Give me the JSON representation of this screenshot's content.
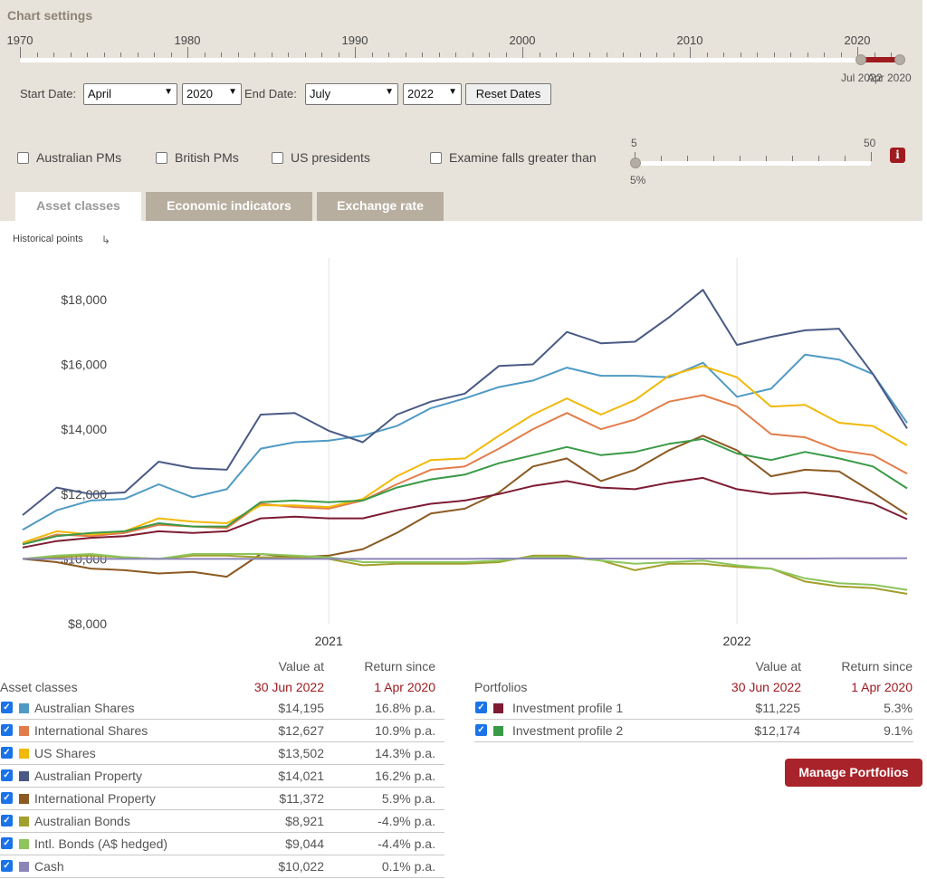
{
  "settings": {
    "title": "Chart settings",
    "timeline_years": [
      "1970",
      "1980",
      "1990",
      "2000",
      "2010",
      "2020"
    ],
    "range_start_label": "Apr 2020",
    "range_end_label": "Jul 2022",
    "start_date_label": "Start Date:",
    "start_month": "April",
    "start_year": "2020",
    "end_date_label": "End Date:",
    "end_month": "July",
    "end_year": "2022",
    "reset_label": "Reset Dates",
    "overlays": [
      "Australian PMs",
      "British PMs",
      "US presidents",
      "Examine falls greater than"
    ],
    "falls_min": "5",
    "falls_max": "50",
    "falls_value": "5%",
    "info_icon": "i",
    "accent": "#9e1b20"
  },
  "tabs": [
    "Asset classes",
    "Economic indicators",
    "Exchange rate"
  ],
  "historical_points_label": "Historical points",
  "chart_data": {
    "type": "line",
    "x": [
      "2020-04",
      "2020-05",
      "2020-06",
      "2020-07",
      "2020-08",
      "2020-09",
      "2020-10",
      "2020-11",
      "2020-12",
      "2021-01",
      "2021-02",
      "2021-03",
      "2021-04",
      "2021-05",
      "2021-06",
      "2021-07",
      "2021-08",
      "2021-09",
      "2021-10",
      "2021-11",
      "2021-12",
      "2022-01",
      "2022-02",
      "2022-03",
      "2022-04",
      "2022-05",
      "2022-06"
    ],
    "x_ticks": [
      "2021",
      "2022"
    ],
    "y_ticks": [
      "$8,000",
      "$10,000",
      "$12,000",
      "$14,000",
      "$16,000",
      "$18,000"
    ],
    "ylim": [
      8000,
      19000
    ],
    "grid": "vertical at year starts",
    "series": [
      {
        "name": "Australian Shares",
        "color": "#4f9ac4",
        "values": [
          10900,
          11500,
          11800,
          11850,
          12300,
          11900,
          12150,
          13400,
          13600,
          13650,
          13800,
          14100,
          14650,
          14950,
          15300,
          15500,
          15900,
          15650,
          15650,
          15600,
          16050,
          15000,
          15250,
          16300,
          16150,
          15700,
          14195
        ]
      },
      {
        "name": "International Shares",
        "color": "#e27d4b",
        "values": [
          10450,
          10750,
          10700,
          10800,
          11050,
          11000,
          10950,
          11700,
          11600,
          11550,
          11800,
          12300,
          12750,
          12850,
          13400,
          14000,
          14500,
          14000,
          14300,
          14850,
          15050,
          14700,
          13850,
          13750,
          13350,
          13200,
          12627
        ]
      },
      {
        "name": "US Shares",
        "color": "#f1b90a",
        "values": [
          10500,
          10850,
          10750,
          10850,
          11250,
          11150,
          11100,
          11650,
          11650,
          11600,
          11850,
          12550,
          13050,
          13100,
          13800,
          14450,
          14950,
          14450,
          14900,
          15650,
          15950,
          15600,
          14700,
          14750,
          14200,
          14100,
          13502
        ]
      },
      {
        "name": "Australian Property",
        "color": "#4a5a85",
        "values": [
          11350,
          12200,
          12000,
          12050,
          13000,
          12800,
          12750,
          14450,
          14500,
          13950,
          13600,
          14450,
          14850,
          15100,
          15950,
          16000,
          17000,
          16650,
          16700,
          17450,
          18300,
          16600,
          16850,
          17050,
          17100,
          15700,
          14021
        ]
      },
      {
        "name": "International Property",
        "color": "#8b5a22",
        "values": [
          10000,
          9900,
          9700,
          9650,
          9550,
          9600,
          9450,
          10150,
          10050,
          10100,
          10300,
          10800,
          11400,
          11550,
          12050,
          12850,
          13100,
          12400,
          12750,
          13350,
          13800,
          13350,
          12550,
          12750,
          12700,
          12050,
          11372
        ]
      },
      {
        "name": "Australian Bonds",
        "color": "#a2a02c",
        "values": [
          10000,
          10050,
          10100,
          10050,
          10000,
          10100,
          10100,
          10050,
          10050,
          10000,
          9800,
          9850,
          9850,
          9850,
          9900,
          10100,
          10100,
          9950,
          9650,
          9850,
          9850,
          9750,
          9700,
          9300,
          9150,
          9100,
          8921
        ]
      },
      {
        "name": "Intl. Bonds (A$ hedged)",
        "color": "#8cc55c",
        "values": [
          10000,
          10100,
          10150,
          10050,
          10000,
          10150,
          10150,
          10150,
          10100,
          10050,
          9900,
          9900,
          9900,
          9900,
          9950,
          10050,
          10050,
          9950,
          9850,
          9900,
          9950,
          9800,
          9700,
          9400,
          9250,
          9200,
          9044
        ]
      },
      {
        "name": "Cash",
        "color": "#8b85b8",
        "values": [
          10000,
          10000,
          10000,
          10000,
          10000,
          10000,
          10000,
          10000,
          10000,
          10000,
          10000,
          10000,
          10000,
          10000,
          10010,
          10010,
          10010,
          10010,
          10010,
          10010,
          10010,
          10010,
          10010,
          10012,
          10015,
          10018,
          10022
        ]
      },
      {
        "name": "Investment profile 1",
        "color": "#7d1b32",
        "values": [
          10350,
          10550,
          10650,
          10700,
          10850,
          10800,
          10850,
          11250,
          11300,
          11250,
          11250,
          11500,
          11700,
          11800,
          12000,
          12250,
          12400,
          12200,
          12150,
          12350,
          12500,
          12150,
          12000,
          12050,
          11900,
          11700,
          11225
        ]
      },
      {
        "name": "Investment profile 2",
        "color": "#3a9a48",
        "values": [
          10450,
          10700,
          10800,
          10850,
          11100,
          11000,
          11000,
          11750,
          11800,
          11750,
          11800,
          12200,
          12450,
          12600,
          12950,
          13200,
          13450,
          13200,
          13300,
          13550,
          13700,
          13250,
          13050,
          13300,
          13100,
          12850,
          12174
        ]
      }
    ]
  },
  "asset_table": {
    "title": "Asset classes",
    "col1_header": "Value at",
    "col1_sub": "30 Jun 2022",
    "col2_header": "Return since",
    "col2_sub": "1 Apr 2020",
    "rows": [
      {
        "name": "Australian Shares",
        "value": "$14,195",
        "ret": "16.8% p.a.",
        "color": "#4f9ac4"
      },
      {
        "name": "International Shares",
        "value": "$12,627",
        "ret": "10.9% p.a.",
        "color": "#e27d4b"
      },
      {
        "name": "US Shares",
        "value": "$13,502",
        "ret": "14.3% p.a.",
        "color": "#f1b90a"
      },
      {
        "name": "Australian Property",
        "value": "$14,021",
        "ret": "16.2% p.a.",
        "color": "#4a5a85"
      },
      {
        "name": "International Property",
        "value": "$11,372",
        "ret": "5.9% p.a.",
        "color": "#8b5a22"
      },
      {
        "name": "Australian Bonds",
        "value": "$8,921",
        "ret": "-4.9% p.a.",
        "color": "#a2a02c"
      },
      {
        "name": "Intl. Bonds (A$ hedged)",
        "value": "$9,044",
        "ret": "-4.4% p.a.",
        "color": "#8cc55c"
      },
      {
        "name": "Cash",
        "value": "$10,022",
        "ret": "0.1% p.a.",
        "color": "#8b85b8"
      }
    ]
  },
  "portfolio_table": {
    "title": "Portfolios",
    "col1_header": "Value at",
    "col1_sub": "30 Jun 2022",
    "col2_header": "Return since",
    "col2_sub": "1 Apr 2020",
    "rows": [
      {
        "name": "Investment profile 1",
        "value": "$11,225",
        "ret": "5.3%",
        "color": "#7d1b32"
      },
      {
        "name": "Investment profile 2",
        "value": "$12,174",
        "ret": "9.1%",
        "color": "#3a9a48"
      }
    ]
  },
  "manage_label": "Manage Portfolios"
}
